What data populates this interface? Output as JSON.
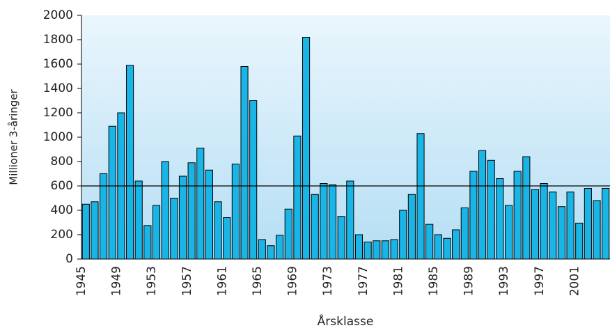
{
  "chart_data": {
    "type": "bar",
    "x_label": "Årsklasse",
    "y_label": "Millioner 3-åringer",
    "categories": [
      "1945",
      null,
      null,
      null,
      "1949",
      null,
      null,
      null,
      "1953",
      null,
      null,
      null,
      "1957",
      null,
      null,
      null,
      "1961",
      null,
      null,
      null,
      "1965",
      null,
      null,
      null,
      "1969",
      null,
      null,
      null,
      "1973",
      null,
      null,
      null,
      "1977",
      null,
      null,
      null,
      "1981",
      null,
      null,
      null,
      "1985",
      null,
      null,
      null,
      "1989",
      null,
      null,
      null,
      "1993",
      null,
      null,
      null,
      "1997",
      null,
      null,
      null,
      "2001",
      null,
      null,
      null
    ],
    "values": [
      450,
      470,
      700,
      1090,
      1200,
      1590,
      640,
      275,
      440,
      800,
      500,
      680,
      790,
      910,
      730,
      470,
      340,
      780,
      1580,
      1300,
      160,
      110,
      195,
      410,
      1010,
      1820,
      530,
      620,
      610,
      350,
      640,
      200,
      140,
      150,
      150,
      160,
      400,
      530,
      1030,
      285,
      200,
      170,
      240,
      420,
      720,
      890,
      810,
      660,
      440,
      720,
      840,
      570,
      620,
      550,
      430,
      550,
      295,
      580,
      480,
      580
    ],
    "color": "#19b5e6",
    "reference_line": 600,
    "ylim": [
      0,
      2000
    ],
    "yticks": [
      0,
      200,
      400,
      600,
      800,
      1000,
      1200,
      1400,
      1600,
      1800,
      2000
    ]
  }
}
